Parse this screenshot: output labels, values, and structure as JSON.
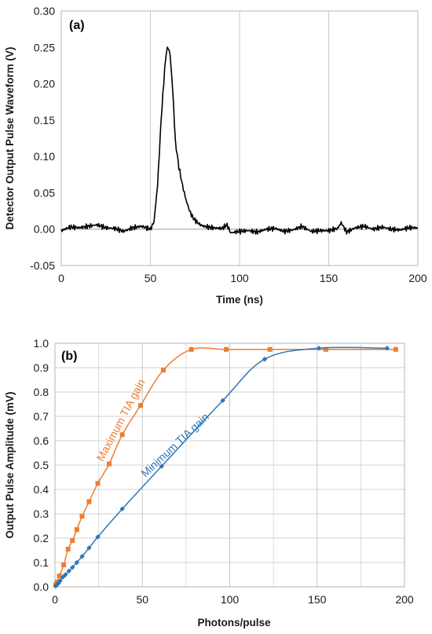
{
  "chart_data": [
    {
      "type": "line",
      "panel_label": "(a)",
      "xlabel": "Time (ns)",
      "ylabel": "Detector Output Pulse Waveform (V)",
      "xlim": [
        0,
        200
      ],
      "ylim": [
        -0.05,
        0.3
      ],
      "xticks": [
        "0",
        "50",
        "100",
        "150",
        "200"
      ],
      "yticks": [
        "-0.05",
        "0.00",
        "0.05",
        "0.10",
        "0.15",
        "0.20",
        "0.25",
        "0.30"
      ],
      "grid": "vertical",
      "series": [
        {
          "color": "#000000",
          "x": [
            0,
            5,
            10,
            15,
            20,
            25,
            30,
            35,
            40,
            45,
            50,
            52,
            54,
            56,
            58,
            59,
            60,
            61,
            62,
            63,
            64,
            66,
            68,
            70,
            72,
            74,
            76,
            78,
            80,
            85,
            90,
            93,
            95,
            100,
            105,
            110,
            115,
            120,
            125,
            130,
            135,
            140,
            145,
            150,
            155,
            157,
            160,
            165,
            170,
            175,
            180,
            185,
            190,
            195,
            200
          ],
          "y": [
            -0.002,
            0.003,
            0.002,
            0.004,
            0.006,
            0.002,
            0.001,
            -0.003,
            0.002,
            0.004,
            0.0,
            0.01,
            0.06,
            0.15,
            0.22,
            0.245,
            0.25,
            0.24,
            0.21,
            0.17,
            0.12,
            0.085,
            0.06,
            0.04,
            0.025,
            0.015,
            0.01,
            0.006,
            0.004,
            0.002,
            0.001,
            0.006,
            -0.005,
            -0.003,
            -0.002,
            -0.004,
            0.0,
            0.001,
            -0.003,
            -0.001,
            0.004,
            -0.003,
            -0.002,
            -0.002,
            0.001,
            0.009,
            -0.004,
            0.002,
            0.004,
            0.0,
            0.003,
            0.0,
            -0.001,
            0.002,
            0.002
          ]
        }
      ]
    },
    {
      "type": "line",
      "panel_label": "(b)",
      "xlabel": "Photons/pulse",
      "ylabel": "Output Pulse Amplitude (mV)",
      "xlim": [
        0,
        200
      ],
      "ylim": [
        0,
        1.0
      ],
      "xticks": [
        "0",
        "50",
        "100",
        "150",
        "200"
      ],
      "yticks": [
        "0.0",
        "0.1",
        "0.2",
        "0.3",
        "0.4",
        "0.5",
        "0.6",
        "0.7",
        "0.8",
        "0.9",
        "1.0"
      ],
      "grid": "both",
      "series": [
        {
          "name": "Maximum TIA gain",
          "color": "#ED7D31",
          "marker": "square",
          "x": [
            0.5,
            1.2,
            2.5,
            5,
            7.5,
            10,
            12.5,
            15.5,
            19.5,
            24.5,
            31,
            38.5,
            49,
            62,
            78,
            98,
            123,
            155,
            195
          ],
          "y": [
            0.01,
            0.02,
            0.045,
            0.09,
            0.155,
            0.19,
            0.235,
            0.29,
            0.35,
            0.425,
            0.505,
            0.625,
            0.745,
            0.89,
            0.975,
            0.975,
            0.975,
            0.975,
            0.975
          ]
        },
        {
          "name": "Minimum TIA gain",
          "color": "#2E75B6",
          "marker": "diamond",
          "x": [
            0.3,
            0.7,
            1.2,
            2,
            3,
            4.5,
            6,
            8,
            10,
            12.5,
            15.5,
            19.5,
            24.5,
            38.5,
            61,
            96,
            120,
            151,
            190
          ],
          "y": [
            0.003,
            0.006,
            0.01,
            0.015,
            0.025,
            0.04,
            0.05,
            0.065,
            0.08,
            0.1,
            0.125,
            0.16,
            0.205,
            0.32,
            0.495,
            0.765,
            0.935,
            0.98,
            0.98
          ]
        }
      ]
    }
  ]
}
